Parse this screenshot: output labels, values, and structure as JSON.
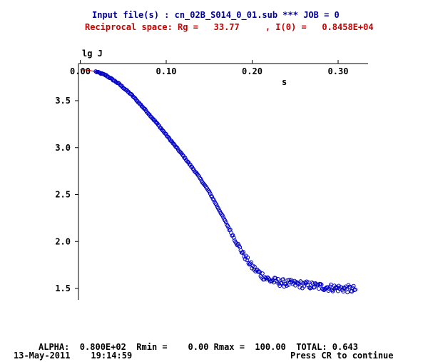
{
  "header": {
    "line1": "Input file(s) : cn_02B_S014_0_01.sub *** JOB = 0",
    "line2": "Reciprocal space: Rg =   33.77     , I(0) =   0.8458E+04",
    "line1_color": "#00009c",
    "line2_color": "#c80000"
  },
  "footer": {
    "params": "ALPHA:  0.800E+02  Rmin =    0.00 Rmax =  100.00  TOTAL: 0.643",
    "date": "13-May-2011",
    "time": "19:14:59",
    "prompt": "Press CR to continue"
  },
  "chart_data": {
    "type": "scatter",
    "title": "",
    "ylabel": "lg J",
    "xlabel": "s",
    "xlim": [
      0.0,
      0.325
    ],
    "ylim": [
      1.38,
      3.82
    ],
    "xticks": [
      0.0,
      0.1,
      0.2,
      0.3
    ],
    "xtick_labels": [
      "0.00",
      "0.10",
      "0.20",
      "0.30"
    ],
    "yticks": [
      1.5,
      2.0,
      2.5,
      3.0,
      3.5
    ],
    "ytick_labels": [
      "1.5",
      "2.0",
      "2.5",
      "3.0",
      "3.5"
    ],
    "grid": false,
    "series": [
      {
        "kind": "points",
        "color": "#0000c8",
        "comment": "experimental data",
        "curve": [
          [
            0.018,
            3.81
          ],
          [
            0.03,
            3.77
          ],
          [
            0.045,
            3.68
          ],
          [
            0.06,
            3.56
          ],
          [
            0.075,
            3.41
          ],
          [
            0.09,
            3.25
          ],
          [
            0.105,
            3.08
          ],
          [
            0.12,
            2.91
          ],
          [
            0.135,
            2.73
          ],
          [
            0.15,
            2.53
          ],
          [
            0.165,
            2.28
          ],
          [
            0.18,
            2.02
          ],
          [
            0.19,
            1.86
          ],
          [
            0.2,
            1.73
          ],
          [
            0.21,
            1.65
          ],
          [
            0.22,
            1.59
          ],
          [
            0.235,
            1.56
          ],
          [
            0.26,
            1.54
          ],
          [
            0.29,
            1.51
          ],
          [
            0.32,
            1.49
          ]
        ],
        "x_start": 0.018,
        "x_end": 0.32,
        "count": 300,
        "noise_start_x": 0.17,
        "noise_amplitude": 0.04
      },
      {
        "kind": "line",
        "color": "#c80000",
        "comment": "Guinier fit",
        "points": [
          [
            0.0,
            3.83
          ],
          [
            0.006,
            3.828
          ],
          [
            0.012,
            3.82
          ],
          [
            0.018,
            3.807
          ],
          [
            0.024,
            3.79
          ]
        ]
      }
    ]
  }
}
